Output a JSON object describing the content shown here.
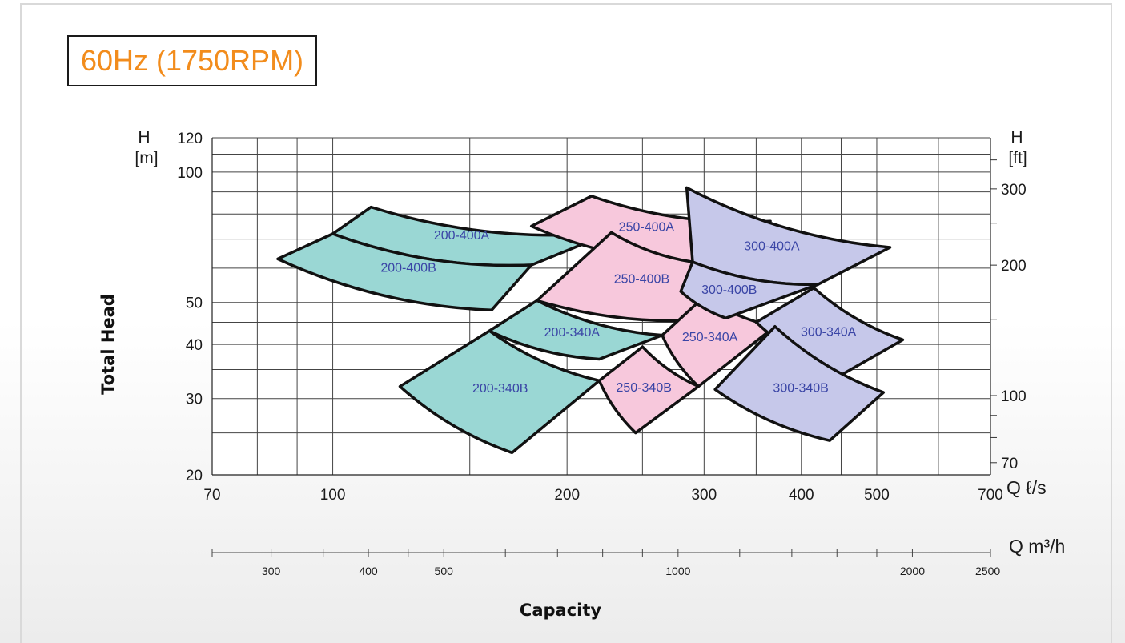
{
  "title": "60Hz (1750RPM)",
  "chart_data": {
    "type": "area",
    "title": "60Hz (1750RPM)",
    "xlabel": "Capacity",
    "ylabel": "Total Head",
    "x_scale": "log",
    "y_scale": "log",
    "grid": true,
    "x_axis_primary": {
      "unit_label": "Q ℓ/s",
      "range": [
        70,
        700
      ],
      "ticks": [
        "70",
        "100",
        "200",
        "300",
        "400",
        "500",
        "700"
      ],
      "tick_values": [
        70,
        100,
        200,
        300,
        400,
        500,
        700
      ]
    },
    "x_axis_secondary": {
      "unit_label": "Q m³/h",
      "range": [
        252,
        2520
      ],
      "ticks": [
        "300",
        "400",
        "500",
        "1000",
        "2000",
        "2500"
      ],
      "tick_values": [
        300,
        400,
        500,
        1000,
        2000,
        2500
      ]
    },
    "y_axis_left": {
      "unit_label_top": "H",
      "unit_label_bottom": "[m]",
      "range": [
        20,
        120
      ],
      "ticks": [
        "20",
        "30",
        "40",
        "50",
        "100",
        "120"
      ],
      "tick_values": [
        20,
        30,
        40,
        50,
        100,
        120
      ]
    },
    "y_axis_right": {
      "unit_label_top": "H",
      "unit_label_bottom": "[ft]",
      "ticks": [
        "70",
        "100",
        "200",
        "300"
      ],
      "tick_values": [
        70,
        100,
        200,
        300
      ]
    },
    "series": [
      {
        "name": "200-400A",
        "color": "#9ad7d4",
        "x": [
          112,
          228,
          180,
          100
        ],
        "y": [
          83,
          72.5,
          61,
          72
        ]
      },
      {
        "name": "200-400B",
        "color": "#9ad7d4",
        "x": [
          100,
          180,
          160,
          85
        ],
        "y": [
          72,
          61,
          48,
          63
        ]
      },
      {
        "name": "200-340A",
        "color": "#9ad7d4",
        "x": [
          183,
          265,
          220,
          159
        ],
        "y": [
          50.5,
          42,
          37,
          43
        ]
      },
      {
        "name": "200-340B",
        "color": "#9ad7d4",
        "x": [
          159,
          220,
          170,
          122
        ],
        "y": [
          43,
          33,
          22.5,
          32
        ]
      },
      {
        "name": "250-400A",
        "color": "#f7c8dc",
        "x": [
          215,
          365,
          290,
          180
        ],
        "y": [
          88,
          77,
          62,
          75
        ]
      },
      {
        "name": "250-400B",
        "color": "#f7c8dc",
        "x": [
          228,
          290,
          320,
          183
        ],
        "y": [
          72.5,
          62,
          46,
          50.5
        ]
      },
      {
        "name": "250-340A",
        "color": "#f7c8dc",
        "x": [
          300,
          370,
          295,
          265
        ],
        "y": [
          51.5,
          44,
          32,
          42
        ]
      },
      {
        "name": "250-340B",
        "color": "#f7c8dc",
        "x": [
          250,
          295,
          245,
          220
        ],
        "y": [
          39.5,
          32,
          25,
          33
        ]
      },
      {
        "name": "300-400A",
        "color": "#c6c8ea",
        "x": [
          285,
          520,
          420,
          290
        ],
        "y": [
          92,
          67,
          55,
          62
        ]
      },
      {
        "name": "300-400B",
        "color": "#c6c8ea",
        "x": [
          290,
          420,
          320,
          280
        ],
        "y": [
          62,
          55,
          46,
          53
        ]
      },
      {
        "name": "300-340A",
        "color": "#c6c8ea",
        "x": [
          415,
          540,
          450,
          350
        ],
        "y": [
          54,
          41,
          34,
          45
        ]
      },
      {
        "name": "300-340B",
        "color": "#c6c8ea",
        "x": [
          370,
          510,
          435,
          310
        ],
        "y": [
          44,
          31,
          24,
          31.5
        ]
      }
    ]
  }
}
